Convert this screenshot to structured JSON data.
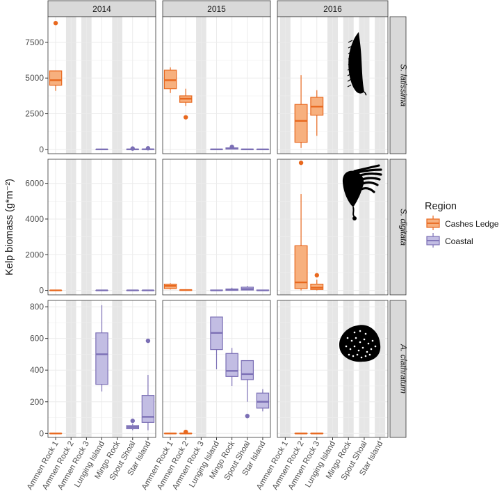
{
  "chart_data": {
    "type": "boxplot",
    "ylabel": "Kelp biomass (g*m⁻²)",
    "facet_columns": [
      "2014",
      "2015",
      "2016"
    ],
    "facet_rows": [
      "S. latissima",
      "S. digitata",
      "A. clathratum"
    ],
    "sites": [
      "Ammen Rock 1",
      "Ammen Rock 2",
      "Ammen Rock 3",
      "Lunging Island",
      "Mingo Rock",
      "Spout Shoal",
      "Star Island"
    ],
    "legend": {
      "title": "Region",
      "items": [
        {
          "label": "Cashes Ledge",
          "color": "#E8681E",
          "fill": "#F7B07E"
        },
        {
          "label": "Coastal",
          "color": "#7B6FB5",
          "fill": "#C2BDE3"
        }
      ]
    },
    "shaded_sites_by_year": {
      "2014": [
        "Ammen Rock 2",
        "Ammen Rock 3",
        "Mingo Rock"
      ],
      "2015": [
        "Ammen Rock 3"
      ],
      "2016": [
        "Ammen Rock 1",
        "Lunging Island",
        "Mingo Rock",
        "Spout Shoal",
        "Star Island"
      ]
    },
    "rows": [
      {
        "species": "S. latissima",
        "ylim": [
          -300,
          9300
        ],
        "yticks": [
          0,
          2500,
          5000,
          7500
        ],
        "panels": {
          "2014": [
            {
              "site": "Ammen Rock 1",
              "region": "Cashes Ledge",
              "min": 4100,
              "q1": 4500,
              "median": 4850,
              "q3": 5500,
              "max": 5500,
              "outliers": [
                8850
              ]
            },
            {
              "site": "Lunging Island",
              "region": "Coastal",
              "min": 0,
              "q1": 0,
              "median": 0,
              "q3": 0,
              "max": 0,
              "outliers": []
            },
            {
              "site": "Spout Shoal",
              "region": "Coastal",
              "min": 0,
              "q1": 0,
              "median": 0,
              "q3": 20,
              "max": 40,
              "outliers": [
                60
              ]
            },
            {
              "site": "Star Island",
              "region": "Coastal",
              "min": 0,
              "q1": 0,
              "median": 10,
              "q3": 20,
              "max": 40,
              "outliers": [
                80
              ]
            }
          ],
          "2015": [
            {
              "site": "Ammen Rock 1",
              "region": "Cashes Ledge",
              "min": 3950,
              "q1": 4250,
              "median": 4850,
              "q3": 5550,
              "max": 5750,
              "outliers": []
            },
            {
              "site": "Ammen Rock 2",
              "region": "Cashes Ledge",
              "min": 3050,
              "q1": 3300,
              "median": 3550,
              "q3": 3750,
              "max": 4250,
              "outliers": [
                2250
              ]
            },
            {
              "site": "Lunging Island",
              "region": "Coastal",
              "min": 0,
              "q1": 0,
              "median": 0,
              "q3": 20,
              "max": 40,
              "outliers": []
            },
            {
              "site": "Mingo Rock",
              "region": "Coastal",
              "min": 0,
              "q1": 20,
              "median": 70,
              "q3": 110,
              "max": 150,
              "outliers": [
                180
              ]
            },
            {
              "site": "Spout Shoal",
              "region": "Coastal",
              "min": 0,
              "q1": 0,
              "median": 0,
              "q3": 20,
              "max": 30,
              "outliers": []
            },
            {
              "site": "Star Island",
              "region": "Coastal",
              "min": 0,
              "q1": 0,
              "median": 0,
              "q3": 0,
              "max": 0,
              "outliers": []
            }
          ],
          "2016": [
            {
              "site": "Ammen Rock 2",
              "region": "Cashes Ledge",
              "min": 100,
              "q1": 500,
              "median": 2000,
              "q3": 3150,
              "max": 5200,
              "outliers": []
            },
            {
              "site": "Ammen Rock 3",
              "region": "Cashes Ledge",
              "min": 950,
              "q1": 2400,
              "median": 3000,
              "q3": 3650,
              "max": 4150,
              "outliers": []
            }
          ]
        }
      },
      {
        "species": "S. digitata",
        "ylim": [
          -250,
          7350
        ],
        "yticks": [
          0,
          2000,
          4000,
          6000
        ],
        "panels": {
          "2014": [
            {
              "site": "Ammen Rock 1",
              "region": "Cashes Ledge",
              "min": 0,
              "q1": 0,
              "median": 0,
              "q3": 0,
              "max": 0,
              "outliers": []
            },
            {
              "site": "Lunging Island",
              "region": "Coastal",
              "min": 0,
              "q1": 0,
              "median": 0,
              "q3": 0,
              "max": 0,
              "outliers": []
            },
            {
              "site": "Spout Shoal",
              "region": "Coastal",
              "min": 0,
              "q1": 0,
              "median": 0,
              "q3": 0,
              "max": 0,
              "outliers": []
            },
            {
              "site": "Star Island",
              "region": "Coastal",
              "min": 0,
              "q1": 0,
              "median": 0,
              "q3": 0,
              "max": 0,
              "outliers": []
            }
          ],
          "2015": [
            {
              "site": "Ammen Rock 1",
              "region": "Cashes Ledge",
              "min": 50,
              "q1": 100,
              "median": 250,
              "q3": 350,
              "max": 400,
              "outliers": []
            },
            {
              "site": "Ammen Rock 2",
              "region": "Cashes Ledge",
              "min": 0,
              "q1": 0,
              "median": 20,
              "q3": 30,
              "max": 40,
              "outliers": []
            },
            {
              "site": "Lunging Island",
              "region": "Coastal",
              "min": 0,
              "q1": 0,
              "median": 0,
              "q3": 20,
              "max": 40,
              "outliers": []
            },
            {
              "site": "Mingo Rock",
              "region": "Coastal",
              "min": 0,
              "q1": 0,
              "median": 40,
              "q3": 80,
              "max": 150,
              "outliers": []
            },
            {
              "site": "Spout Shoal",
              "region": "Coastal",
              "min": 0,
              "q1": 20,
              "median": 80,
              "q3": 180,
              "max": 250,
              "outliers": []
            },
            {
              "site": "Star Island",
              "region": "Coastal",
              "min": 0,
              "q1": 0,
              "median": 0,
              "q3": 20,
              "max": 40,
              "outliers": []
            }
          ],
          "2016": [
            {
              "site": "Ammen Rock 2",
              "region": "Cashes Ledge",
              "min": 0,
              "q1": 100,
              "median": 450,
              "q3": 2500,
              "max": 5400,
              "outliers": [
                7150
              ]
            },
            {
              "site": "Ammen Rock 3",
              "region": "Cashes Ledge",
              "min": 0,
              "q1": 50,
              "median": 150,
              "q3": 350,
              "max": 600,
              "outliers": [
                850
              ]
            }
          ]
        }
      },
      {
        "species": "A. clathratum",
        "ylim": [
          -25,
          840
        ],
        "yticks": [
          0,
          200,
          400,
          600,
          800
        ],
        "panels": {
          "2014": [
            {
              "site": "Ammen Rock 1",
              "region": "Cashes Ledge",
              "min": 0,
              "q1": 0,
              "median": 0,
              "q3": 0,
              "max": 0,
              "outliers": []
            },
            {
              "site": "Lunging Island",
              "region": "Coastal",
              "min": 265,
              "q1": 310,
              "median": 500,
              "q3": 635,
              "max": 810,
              "outliers": []
            },
            {
              "site": "Spout Shoal",
              "region": "Coastal",
              "min": 20,
              "q1": 30,
              "median": 40,
              "q3": 50,
              "max": 60,
              "outliers": [
                80
              ]
            },
            {
              "site": "Star Island",
              "region": "Coastal",
              "min": 20,
              "q1": 70,
              "median": 105,
              "q3": 240,
              "max": 370,
              "outliers": [
                585
              ]
            }
          ],
          "2015": [
            {
              "site": "Ammen Rock 1",
              "region": "Cashes Ledge",
              "min": 0,
              "q1": 0,
              "median": 0,
              "q3": 0,
              "max": 0,
              "outliers": []
            },
            {
              "site": "Ammen Rock 2",
              "region": "Cashes Ledge",
              "min": 0,
              "q1": 0,
              "median": 0,
              "q3": 0,
              "max": 5,
              "outliers": [
                10
              ]
            },
            {
              "site": "Lunging Island",
              "region": "Coastal",
              "min": 405,
              "q1": 530,
              "median": 635,
              "q3": 735,
              "max": 735,
              "outliers": []
            },
            {
              "site": "Mingo Rock",
              "region": "Coastal",
              "min": 300,
              "q1": 360,
              "median": 395,
              "q3": 505,
              "max": 540,
              "outliers": []
            },
            {
              "site": "Spout Shoal",
              "region": "Coastal",
              "min": 200,
              "q1": 340,
              "median": 375,
              "q3": 460,
              "max": 460,
              "outliers": [
                110
              ]
            },
            {
              "site": "Star Island",
              "region": "Coastal",
              "min": 140,
              "q1": 160,
              "median": 200,
              "q3": 255,
              "max": 280,
              "outliers": []
            }
          ],
          "2016": [
            {
              "site": "Ammen Rock 2",
              "region": "Cashes Ledge",
              "min": 0,
              "q1": 0,
              "median": 0,
              "q3": 0,
              "max": 0,
              "outliers": []
            },
            {
              "site": "Ammen Rock 3",
              "region": "Cashes Ledge",
              "min": 0,
              "q1": 0,
              "median": 0,
              "q3": 0,
              "max": 0,
              "outliers": []
            }
          ]
        }
      }
    ],
    "silhouettes": [
      {
        "row": "S. latissima",
        "column": "2016",
        "icon": "latissima-silhouette"
      },
      {
        "row": "S. digitata",
        "column": "2016",
        "icon": "digitata-silhouette"
      },
      {
        "row": "A. clathratum",
        "column": "2016",
        "icon": "clathratum-silhouette"
      }
    ]
  }
}
